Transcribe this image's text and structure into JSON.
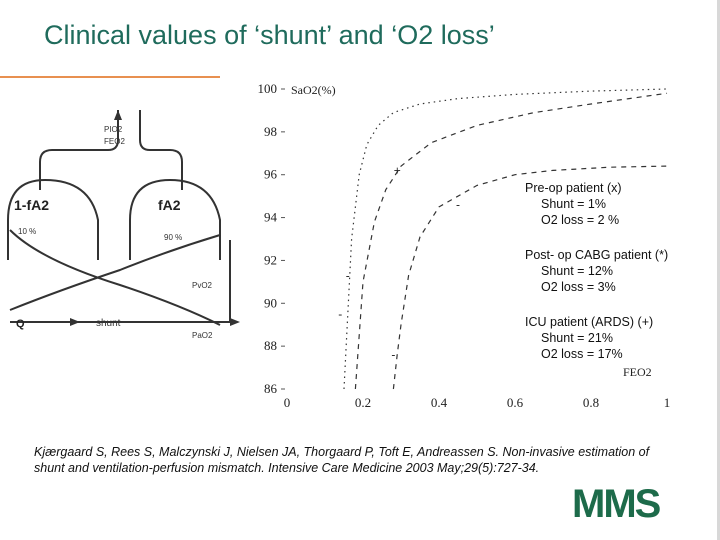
{
  "slide": {
    "title": "Clinical values of ‘shunt’ and ‘O2 loss’",
    "citation": "Kjærgaard S, Rees S, Malczynski J, Nielsen JA, Thorgaard P, Toft E, Andreassen S. Non-invasive estimation of shunt and ventilation-perfusion mismatch. Intensive Care Medicine 2003 May;29(5):727-34.",
    "logo_text": "MMS",
    "colors": {
      "title": "#1f6b5c",
      "rule": "#e89050",
      "logo": "#1d6b4a"
    }
  },
  "diagram": {
    "inlet_labels": [
      "PIO2",
      "FEO2"
    ],
    "left_compartment": "1-fA2",
    "right_compartment": "fA2",
    "left_percent": "10 %",
    "right_percent": "90 %",
    "mixed_venous_label": "PvO2",
    "arterial_label": "PaO2",
    "flow_label": "Q",
    "shunt_label": "shunt"
  },
  "annotations": [
    {
      "l1": "Pre-op patient (x)",
      "l2": "Shunt = 1%",
      "l3": "O2 loss = 2 %"
    },
    {
      "l1": "Post- op CABG patient (*)",
      "l2": "Shunt = 12%",
      "l3": "O2 loss = 3%"
    },
    {
      "l1": "ICU patient (ARDS) (+)",
      "l2": "Shunt = 21%",
      "l3": "O2 loss = 17%"
    }
  ],
  "chart_data": {
    "type": "line",
    "title": "",
    "xlabel": "FEO2",
    "ylabel": "SaO2(%)",
    "xlim": [
      0,
      1
    ],
    "ylim": [
      86,
      100
    ],
    "xticks": [
      0,
      0.2,
      0.4,
      0.6,
      0.8,
      1
    ],
    "xtick_labels": [
      "0",
      "0.2",
      "0.4",
      "0.6",
      "0.8",
      "1"
    ],
    "yticks": [
      86,
      88,
      90,
      92,
      94,
      96,
      98,
      100
    ],
    "ytick_labels": [
      "86",
      "88",
      "90",
      "92",
      "94",
      "96",
      "98",
      "100"
    ],
    "grid": false,
    "series": [
      {
        "style": "dotted",
        "x": [
          0.15,
          0.17,
          0.19,
          0.21,
          0.24,
          0.28,
          0.35,
          0.45,
          0.6,
          0.8,
          1.0
        ],
        "y": [
          86,
          93,
          96,
          97.4,
          98.3,
          98.9,
          99.3,
          99.55,
          99.75,
          99.9,
          100
        ]
      },
      {
        "style": "dashed",
        "x": [
          0.18,
          0.2,
          0.23,
          0.26,
          0.3,
          0.38,
          0.5,
          0.65,
          0.8,
          0.9,
          1.0
        ],
        "y": [
          86,
          91,
          93.8,
          95.3,
          96.4,
          97.5,
          98.3,
          98.9,
          99.3,
          99.55,
          99.8
        ]
      },
      {
        "style": "dashed",
        "x": [
          0.28,
          0.29,
          0.3,
          0.32,
          0.35,
          0.4,
          0.5,
          0.6,
          0.7,
          0.85,
          1.0
        ],
        "y": [
          86,
          87.6,
          89,
          91.3,
          93.1,
          94.5,
          95.5,
          96.0,
          96.2,
          96.35,
          96.4
        ]
      }
    ],
    "markers": [
      {
        "symbol": "+",
        "x": 0.29,
        "y": 96.2
      },
      {
        "symbol": "-",
        "x": 0.45,
        "y": 94.6
      },
      {
        "symbol": "-",
        "x": 0.16,
        "y": 91.3
      },
      {
        "symbol": "-",
        "x": 0.14,
        "y": 89.5
      },
      {
        "symbol": "-",
        "x": 0.28,
        "y": 87.6
      }
    ]
  }
}
